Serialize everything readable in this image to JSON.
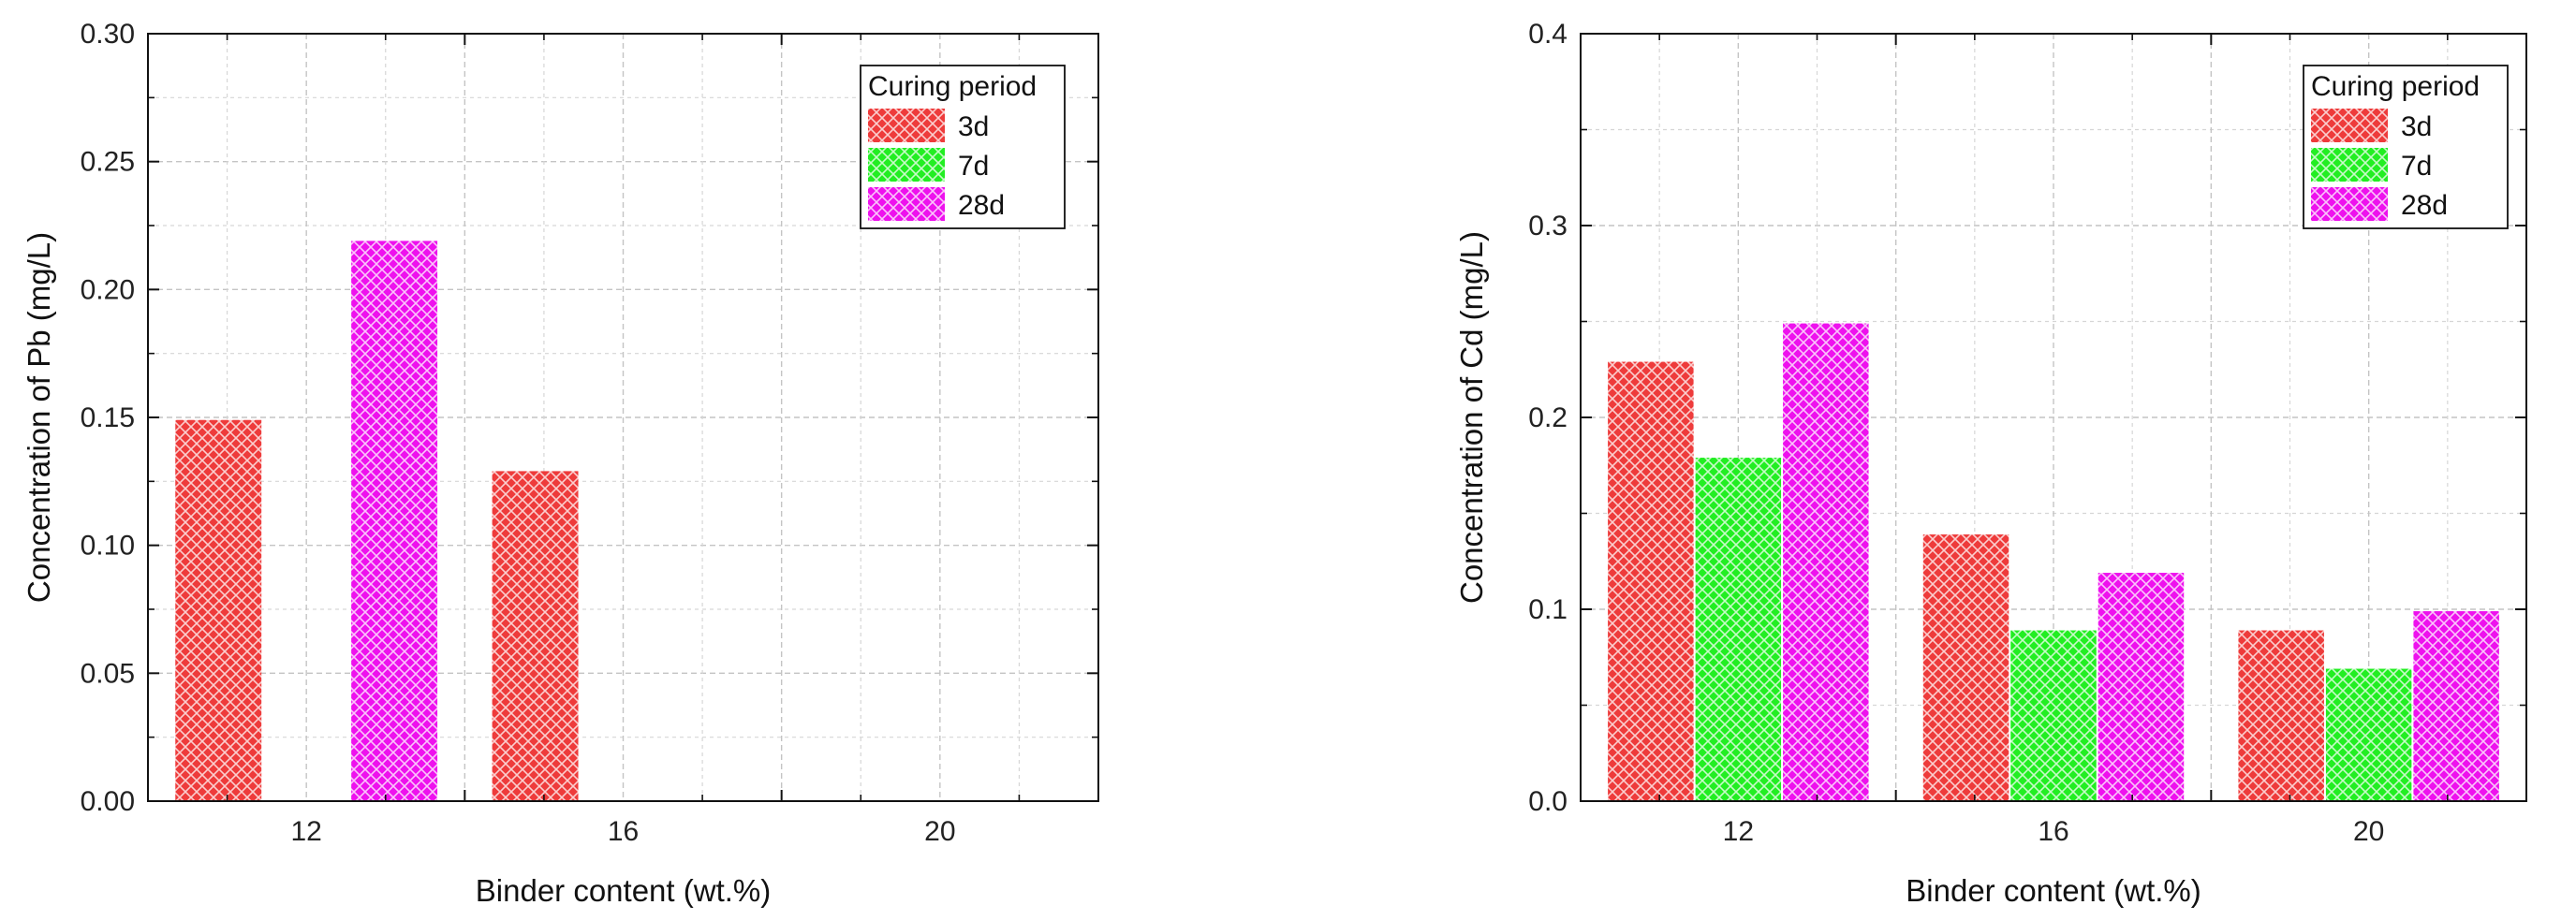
{
  "chart_data": [
    {
      "type": "bar",
      "categories": [
        "12",
        "16",
        "20"
      ],
      "xlabel": "Binder content (wt.%)",
      "ylabel": "Concentration of Pb (mg/L)",
      "ylim": [
        0,
        0.3
      ],
      "yticks": [
        0.0,
        0.05,
        0.1,
        0.15,
        0.2,
        0.25,
        0.3
      ],
      "ytick_labels": [
        "0.00",
        "0.05",
        "0.10",
        "0.15",
        "0.20",
        "0.25",
        "0.30"
      ],
      "grid": true,
      "legend": {
        "title": "Curing period",
        "placement": "top-right"
      },
      "series": [
        {
          "name": "3d",
          "color": "#ee3b3b",
          "values": [
            0.149,
            0.129,
            0
          ]
        },
        {
          "name": "7d",
          "color": "#22ee22",
          "values": [
            0,
            0,
            0
          ]
        },
        {
          "name": "28d",
          "color": "#ee11ee",
          "values": [
            0.219,
            0,
            0
          ]
        }
      ]
    },
    {
      "type": "bar",
      "categories": [
        "12",
        "16",
        "20"
      ],
      "xlabel": "Binder content (wt.%)",
      "ylabel": "Concentration of Cd (mg/L)",
      "ylim": [
        0,
        0.4
      ],
      "yticks": [
        0.0,
        0.1,
        0.2,
        0.3,
        0.4
      ],
      "ytick_labels": [
        "0.0",
        "0.1",
        "0.2",
        "0.3",
        "0.4"
      ],
      "grid": true,
      "legend": {
        "title": "Curing period",
        "placement": "top-right"
      },
      "series": [
        {
          "name": "3d",
          "color": "#ee3b3b",
          "values": [
            0.229,
            0.139,
            0.089
          ]
        },
        {
          "name": "7d",
          "color": "#22ee22",
          "values": [
            0.179,
            0.089,
            0.069
          ]
        },
        {
          "name": "28d",
          "color": "#ee11ee",
          "values": [
            0.249,
            0.119,
            0.099
          ]
        }
      ]
    }
  ]
}
